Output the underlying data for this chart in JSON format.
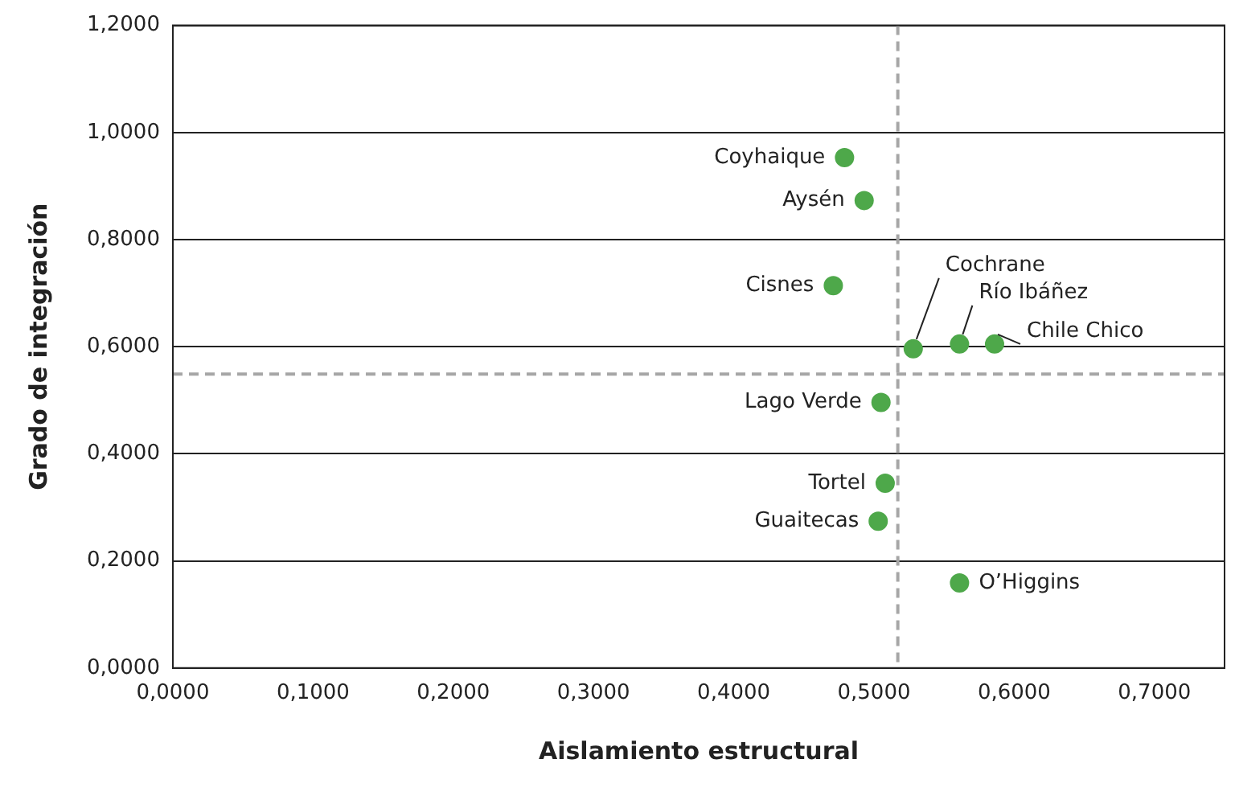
{
  "chart_data": {
    "type": "scatter",
    "xlabel": "Aislamiento estructural",
    "ylabel": "Grado de integración",
    "x": [
      0.479,
      0.493,
      0.471,
      0.528,
      0.561,
      0.586,
      0.505,
      0.508,
      0.503,
      0.561
    ],
    "values": [
      0.953,
      0.873,
      0.714,
      0.596,
      0.605,
      0.605,
      0.496,
      0.345,
      0.274,
      0.159
    ],
    "color": "#4ea84a",
    "marker": "circle",
    "xlim": [
      0,
      0.75
    ],
    "xticks": [
      {
        "value": 0,
        "label": "0,0000"
      },
      {
        "value": 0.1,
        "label": "0,1000"
      },
      {
        "value": 0.2,
        "label": "0,2000"
      },
      {
        "value": 0.3,
        "label": "0,3000"
      },
      {
        "value": 0.4,
        "label": "0,4000"
      },
      {
        "value": 0.5,
        "label": "0,5000"
      },
      {
        "value": 0.6,
        "label": "0,6000"
      },
      {
        "value": 0.7,
        "label": "0,7000"
      }
    ],
    "ylim": [
      0,
      1.2
    ],
    "yticks": [
      {
        "value": 0,
        "label": "0,0000"
      },
      {
        "value": 0.2,
        "label": "0,2000"
      },
      {
        "value": 0.4,
        "label": "0,4000"
      },
      {
        "value": 0.6,
        "label": "0,6000"
      },
      {
        "value": 0.8,
        "label": "0,8000"
      },
      {
        "value": 1,
        "label": "1,0000"
      },
      {
        "value": 1.2,
        "label": "1,2000"
      }
    ],
    "grid": "y",
    "legend": false,
    "ref_lines": [
      {
        "axis": "x",
        "value": 0.517,
        "color": "#a6a6a6",
        "line_style": "dashed"
      },
      {
        "axis": "y",
        "value": 0.549,
        "color": "#a6a6a6",
        "line_style": "dashed"
      }
    ],
    "annotations": [
      {
        "text": "Coyhaique",
        "x": 0.479,
        "y": 0.953
      },
      {
        "text": "Aysén",
        "x": 0.493,
        "y": 0.873
      },
      {
        "text": "Cisnes",
        "x": 0.471,
        "y": 0.714
      },
      {
        "text": "Cochrane",
        "x": 0.528,
        "y": 0.596
      },
      {
        "text": "Río Ibáñez",
        "x": 0.561,
        "y": 0.605
      },
      {
        "text": "Chile Chico",
        "x": 0.586,
        "y": 0.605
      },
      {
        "text": "Lago Verde",
        "x": 0.505,
        "y": 0.496
      },
      {
        "text": "Tortel",
        "x": 0.508,
        "y": 0.345
      },
      {
        "text": "Guaitecas",
        "x": 0.503,
        "y": 0.274
      },
      {
        "text": "O’Higgins",
        "x": 0.561,
        "y": 0.159
      }
    ]
  }
}
